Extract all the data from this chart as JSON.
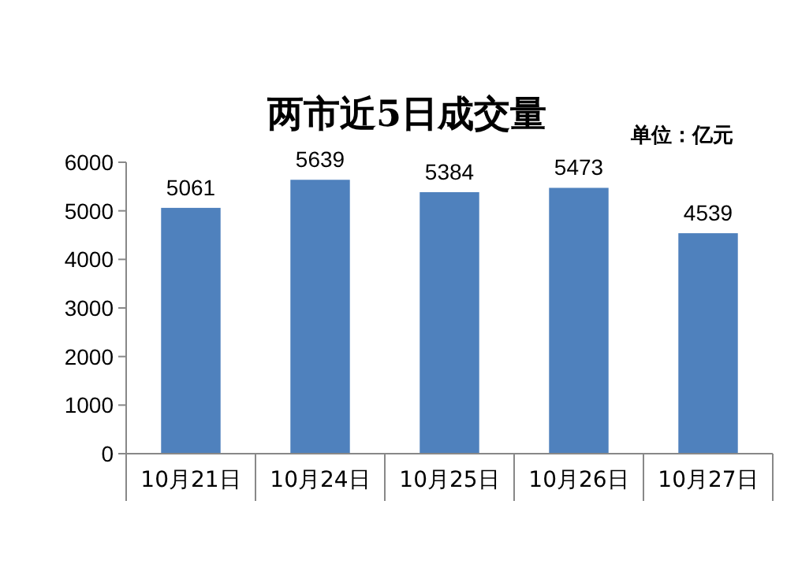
{
  "chart_data": {
    "type": "bar",
    "title": "两市近5日成交量",
    "annotations": [
      "单位：亿元"
    ],
    "categories": [
      "10月21日",
      "10月24日",
      "10月25日",
      "10月26日",
      "10月27日"
    ],
    "values": [
      5061,
      5639,
      5384,
      5473,
      4539
    ],
    "color": "#4f81bd",
    "ylim": [
      0,
      6000
    ],
    "yticks": [
      0,
      1000,
      2000,
      3000,
      4000,
      5000,
      6000
    ],
    "data_labels": true
  }
}
